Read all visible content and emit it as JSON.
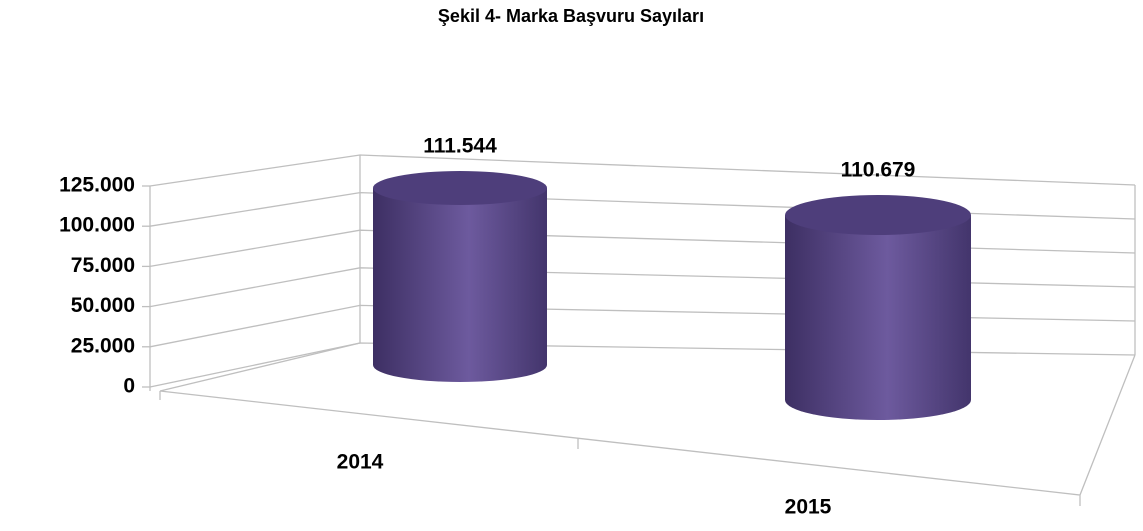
{
  "chart_data": {
    "type": "bar3d_cylinder",
    "title": "Şekil 4- Marka Başvuru Sayıları",
    "categories": [
      "2014",
      "2015"
    ],
    "values": [
      111544,
      110679
    ],
    "value_labels": [
      "111.544",
      "110.679"
    ],
    "color": "#5d4b8c",
    "ylim": [
      0,
      125000
    ],
    "yticks": [
      0,
      {
        "value": 25000,
        "label": "25.000"
      },
      {
        "value": 50000,
        "label": "50.000"
      },
      {
        "value": 75000,
        "label": "75.000"
      },
      {
        "value": 100000,
        "label": "100.000"
      },
      {
        "value": 125000,
        "label": "125.000"
      }
    ],
    "grid": true
  }
}
